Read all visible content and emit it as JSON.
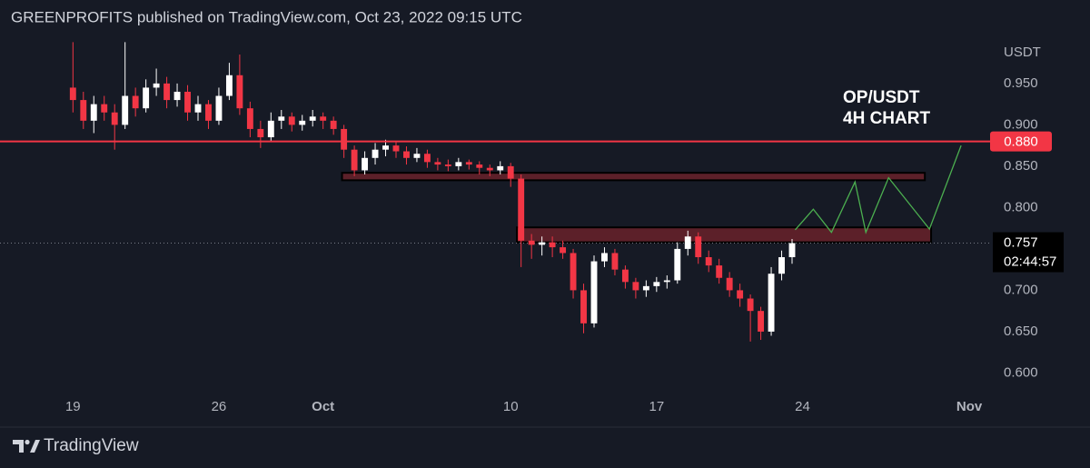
{
  "header": "GREENPROFITS published on TradingView.com, Oct 23, 2022 09:15 UTC",
  "footer": "TradingView",
  "chart_data": {
    "type": "candlestick",
    "title": "OP/USDT",
    "subtitle": "4H CHART",
    "y_axis_label": "USDT",
    "x": [
      0,
      0.5,
      1,
      1.5,
      2,
      2.5,
      3,
      3.5,
      4,
      4.5,
      5,
      5.5,
      6,
      6.5,
      7,
      7.5,
      8,
      8.5,
      9,
      9.5,
      10,
      10.5,
      11,
      11.5,
      12,
      12.5,
      13,
      13.5,
      14,
      14.5,
      15,
      15.5,
      16,
      16.5,
      17,
      17.5,
      18,
      18.5,
      19,
      19.5,
      20,
      20.5,
      21,
      21.5,
      22,
      22.5,
      23,
      23.5,
      24,
      24.5,
      25,
      25.5,
      26,
      26.5,
      27,
      27.5,
      28,
      28.5,
      29,
      29.5,
      30,
      30.5,
      31,
      31.5,
      32,
      32.5,
      33,
      33.5,
      34,
      34.5
    ],
    "open": [
      0.945,
      0.93,
      0.905,
      0.925,
      0.915,
      0.9,
      0.935,
      0.92,
      0.945,
      0.95,
      0.93,
      0.94,
      0.915,
      0.925,
      0.905,
      0.935,
      0.96,
      0.92,
      0.895,
      0.885,
      0.905,
      0.91,
      0.9,
      0.905,
      0.91,
      0.905,
      0.895,
      0.87,
      0.845,
      0.86,
      0.87,
      0.875,
      0.868,
      0.86,
      0.865,
      0.855,
      0.852,
      0.85,
      0.855,
      0.852,
      0.848,
      0.845,
      0.85,
      0.835,
      0.76,
      0.755,
      0.758,
      0.752,
      0.745,
      0.7,
      0.66,
      0.735,
      0.745,
      0.725,
      0.71,
      0.7,
      0.705,
      0.71,
      0.712,
      0.75,
      0.765,
      0.74,
      0.73,
      0.715,
      0.7,
      0.69,
      0.675,
      0.65,
      0.72,
      0.74
    ],
    "high": [
      1.0,
      0.94,
      0.935,
      0.935,
      0.925,
      1.0,
      0.945,
      0.955,
      0.968,
      0.958,
      0.95,
      0.948,
      0.935,
      0.93,
      0.945,
      0.975,
      0.985,
      0.928,
      0.905,
      0.915,
      0.918,
      0.915,
      0.912,
      0.918,
      0.915,
      0.91,
      0.9,
      0.875,
      0.868,
      0.878,
      0.882,
      0.88,
      0.874,
      0.872,
      0.87,
      0.86,
      0.858,
      0.86,
      0.858,
      0.856,
      0.852,
      0.856,
      0.854,
      0.84,
      0.768,
      0.765,
      0.765,
      0.76,
      0.75,
      0.708,
      0.742,
      0.752,
      0.75,
      0.73,
      0.715,
      0.712,
      0.716,
      0.718,
      0.758,
      0.772,
      0.77,
      0.748,
      0.738,
      0.722,
      0.708,
      0.695,
      0.68,
      0.728,
      0.748,
      0.762
    ],
    "low": [
      0.915,
      0.895,
      0.89,
      0.905,
      0.87,
      0.895,
      0.91,
      0.915,
      0.935,
      0.92,
      0.922,
      0.905,
      0.905,
      0.895,
      0.9,
      0.93,
      0.912,
      0.885,
      0.872,
      0.88,
      0.895,
      0.892,
      0.893,
      0.898,
      0.895,
      0.888,
      0.86,
      0.838,
      0.84,
      0.852,
      0.862,
      0.86,
      0.852,
      0.855,
      0.848,
      0.845,
      0.844,
      0.845,
      0.846,
      0.84,
      0.838,
      0.84,
      0.825,
      0.728,
      0.738,
      0.742,
      0.74,
      0.738,
      0.69,
      0.648,
      0.655,
      0.728,
      0.718,
      0.702,
      0.69,
      0.692,
      0.698,
      0.702,
      0.708,
      0.742,
      0.732,
      0.722,
      0.708,
      0.692,
      0.68,
      0.638,
      0.64,
      0.645,
      0.712,
      0.732
    ],
    "close": [
      0.93,
      0.905,
      0.925,
      0.915,
      0.9,
      0.935,
      0.92,
      0.945,
      0.95,
      0.93,
      0.94,
      0.915,
      0.925,
      0.905,
      0.935,
      0.96,
      0.92,
      0.895,
      0.885,
      0.905,
      0.91,
      0.9,
      0.905,
      0.91,
      0.905,
      0.895,
      0.87,
      0.845,
      0.86,
      0.87,
      0.875,
      0.868,
      0.86,
      0.865,
      0.855,
      0.852,
      0.85,
      0.855,
      0.852,
      0.848,
      0.845,
      0.85,
      0.835,
      0.76,
      0.755,
      0.758,
      0.752,
      0.745,
      0.7,
      0.66,
      0.735,
      0.745,
      0.725,
      0.71,
      0.7,
      0.705,
      0.71,
      0.712,
      0.75,
      0.765,
      0.74,
      0.73,
      0.715,
      0.7,
      0.69,
      0.675,
      0.65,
      0.72,
      0.74,
      0.757
    ],
    "up_color": "#ffffff",
    "down_color": "#f23645",
    "xlim": [
      -3.5,
      44
    ],
    "ylim": [
      0.573,
      1.007
    ],
    "xticks": [
      {
        "value": 0,
        "label": "19"
      },
      {
        "value": 7,
        "label": "26"
      },
      {
        "value": 12,
        "label": "Oct"
      },
      {
        "value": 21,
        "label": "10"
      },
      {
        "value": 28,
        "label": "17"
      },
      {
        "value": 35,
        "label": "24"
      },
      {
        "value": 43,
        "label": "Nov"
      }
    ],
    "yticks": [
      {
        "value": 0.6,
        "label": "0.600"
      },
      {
        "value": 0.65,
        "label": "0.650"
      },
      {
        "value": 0.7,
        "label": "0.700"
      },
      {
        "value": 0.8,
        "label": "0.800"
      },
      {
        "value": 0.85,
        "label": "0.850"
      },
      {
        "value": 0.9,
        "label": "0.900"
      },
      {
        "value": 0.95,
        "label": "0.950"
      }
    ],
    "price_line": {
      "value": 0.88,
      "label": "0.880",
      "color": "#f23645"
    },
    "last_price": {
      "value": 0.757,
      "countdown": "02:44:57"
    },
    "zone_color": "#5c2029",
    "zones": [
      {
        "x": [
          12.91,
          40.87
        ],
        "y": [
          0.833,
          0.842
        ]
      },
      {
        "x": [
          21.3,
          41.17
        ],
        "y": [
          0.758,
          0.776
        ]
      }
    ],
    "projection": {
      "color": "#4caf50",
      "x": [
        34.65,
        35.52,
        36.39,
        37.52,
        38.04,
        39.13,
        41.09,
        42.61
      ],
      "y": [
        0.773,
        0.798,
        0.77,
        0.831,
        0.77,
        0.836,
        0.774,
        0.875
      ]
    }
  }
}
